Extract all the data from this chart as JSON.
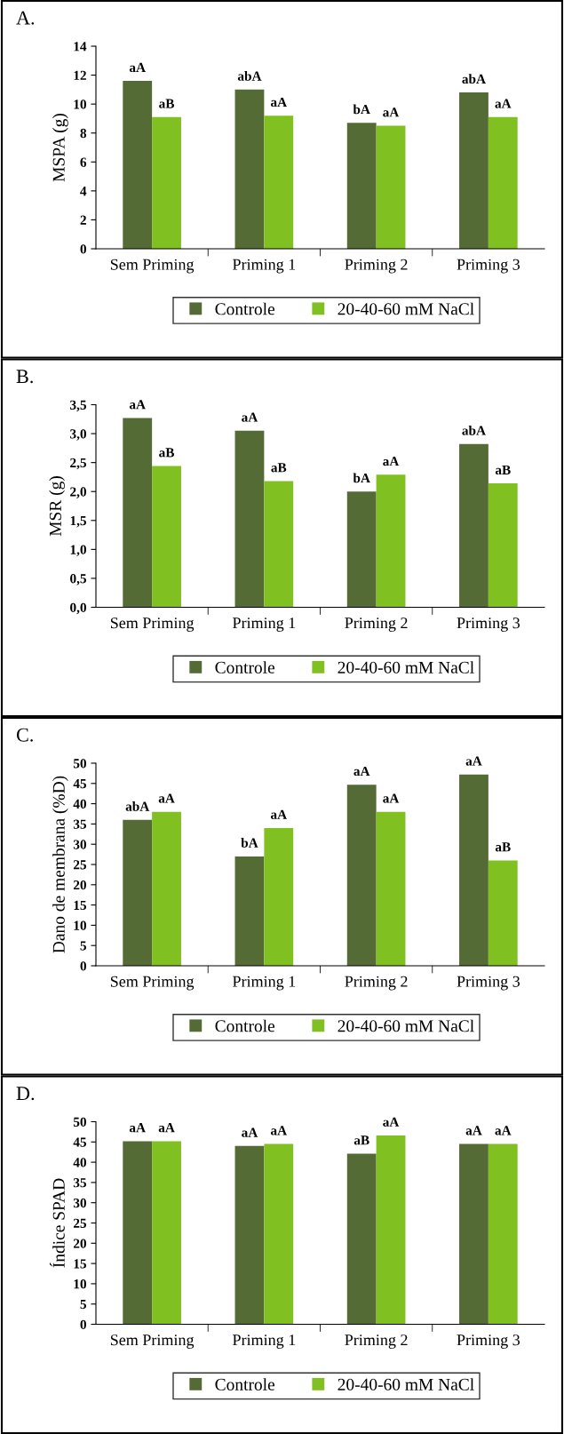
{
  "chart_data": [
    {
      "type": "bar",
      "title": "A.",
      "ylabel": "MSPA (g)",
      "categories": [
        "Sem Priming",
        "Priming 1",
        "Priming 2",
        "Priming 3"
      ],
      "series": [
        {
          "name": "Controle",
          "color": "#556b35",
          "values": [
            11.6,
            11.0,
            8.7,
            10.8
          ],
          "value_labels": [
            "aA",
            "abA",
            "bA",
            "abA"
          ]
        },
        {
          "name": "20-40-60 mM NaCl",
          "color": "#80c020",
          "values": [
            9.1,
            9.2,
            8.5,
            9.1
          ],
          "value_labels": [
            "aB",
            "aA",
            "aA",
            "aA"
          ]
        }
      ],
      "ylim": [
        0,
        14
      ],
      "yticks": [
        0,
        2,
        4,
        6,
        8,
        10,
        12,
        14
      ],
      "legend": "bottom",
      "grid": false
    },
    {
      "type": "bar",
      "title": "B.",
      "ylabel": "MSR (g)",
      "categories": [
        "Sem Priming",
        "Priming 1",
        "Priming 2",
        "Priming 3"
      ],
      "series": [
        {
          "name": "Controle",
          "color": "#556b35",
          "values": [
            3.27,
            3.05,
            2.0,
            2.82
          ],
          "value_labels": [
            "aA",
            "aA",
            "bA",
            "abA"
          ]
        },
        {
          "name": "20-40-60 mM NaCl",
          "color": "#80c020",
          "values": [
            2.44,
            2.18,
            2.29,
            2.14
          ],
          "value_labels": [
            "aB",
            "aB",
            "aA",
            "aB"
          ]
        }
      ],
      "ylim": [
        0,
        3.5
      ],
      "yticks": [
        {
          "value": 0,
          "label": "0,0"
        },
        {
          "value": 0.5,
          "label": "0,5"
        },
        {
          "value": 1,
          "label": "1,0"
        },
        {
          "value": 1.5,
          "label": "1,5"
        },
        {
          "value": 2,
          "label": "2,0"
        },
        {
          "value": 2.5,
          "label": "2,5"
        },
        {
          "value": 3,
          "label": "3,0"
        },
        {
          "value": 3.5,
          "label": "3,5"
        }
      ],
      "legend": "bottom",
      "grid": false
    },
    {
      "type": "bar",
      "title": "C.",
      "ylabel": "Dano de membrana (%D)",
      "categories": [
        "Sem Priming",
        "Priming 1",
        "Priming 2",
        "Priming 3"
      ],
      "series": [
        {
          "name": "Controle",
          "color": "#556b35",
          "values": [
            36,
            27,
            44.7,
            47.2
          ],
          "value_labels": [
            "abA",
            "bA",
            "aA",
            "aA"
          ]
        },
        {
          "name": "20-40-60 mM NaCl",
          "color": "#80c020",
          "values": [
            38,
            34,
            38,
            26
          ],
          "value_labels": [
            "aA",
            "aA",
            "aA",
            "aB"
          ]
        }
      ],
      "ylim": [
        0,
        50
      ],
      "yticks": [
        0,
        5,
        10,
        15,
        20,
        25,
        30,
        35,
        40,
        45,
        50
      ],
      "legend": "bottom",
      "grid": false
    },
    {
      "type": "bar",
      "title": "D.",
      "ylabel": "Índice SPAD",
      "categories": [
        "Sem Priming",
        "Priming 1",
        "Priming 2",
        "Priming 3"
      ],
      "series": [
        {
          "name": "Controle",
          "color": "#556b35",
          "values": [
            45.2,
            44.0,
            42.1,
            44.5
          ],
          "value_labels": [
            "aA",
            "aA",
            "aB",
            "aA"
          ]
        },
        {
          "name": "20-40-60 mM NaCl",
          "color": "#80c020",
          "values": [
            45.2,
            44.5,
            46.6,
            44.5
          ],
          "value_labels": [
            "aA",
            "aA",
            "aA",
            "aA"
          ]
        }
      ],
      "ylim": [
        0,
        50
      ],
      "yticks": [
        0,
        5,
        10,
        15,
        20,
        25,
        30,
        35,
        40,
        45,
        50
      ],
      "legend": "bottom",
      "grid": false
    }
  ]
}
